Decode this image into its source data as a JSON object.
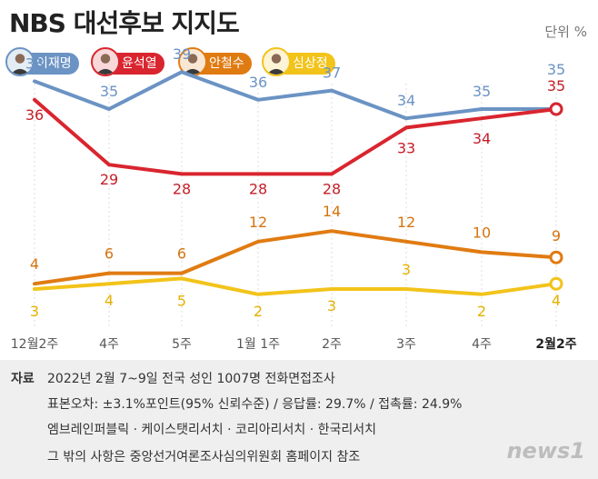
{
  "title": "NBS 대선후보 지지도",
  "unit": "단위 %",
  "candidates": [
    {
      "name": "이재명",
      "color": "#6b93c4"
    },
    {
      "name": "윤석열",
      "color": "#d9252f"
    },
    {
      "name": "안철수",
      "color": "#e07b12"
    },
    {
      "name": "심상정",
      "color": "#f2c31a"
    }
  ],
  "chart_data": {
    "type": "line",
    "categories": [
      "12월2주",
      "4주",
      "5주",
      "1월 1주",
      "2주",
      "3주",
      "4주",
      "2월2주"
    ],
    "series": [
      {
        "name": "이재명",
        "color": "#6b93c4",
        "values": [
          38,
          35,
          39,
          36,
          37,
          34,
          35,
          35
        ]
      },
      {
        "name": "윤석열",
        "color": "#d9252f",
        "values": [
          36,
          29,
          28,
          28,
          28,
          33,
          34,
          35
        ]
      },
      {
        "name": "안철수",
        "color": "#e07b12",
        "values": [
          4,
          6,
          6,
          12,
          14,
          12,
          10,
          9
        ]
      },
      {
        "name": "심상정",
        "color": "#f2c31a",
        "values": [
          3,
          4,
          5,
          2,
          3,
          3,
          2,
          4
        ]
      }
    ],
    "legend": "top-left",
    "grid": "vertical"
  },
  "source": {
    "label": "자료",
    "line1": "2022년 2월 7~9일 전국 성인 1007명 전화면접조사",
    "line2": "표본오차: ±3.1%포인트(95% 신뢰수준) / 응답률: 29.7% / 접촉률: 24.9%",
    "line3": "엠브레인퍼블릭 · 케이스탯리서치 · 코리아리서치 · 한국리서치",
    "line4": "그 밖의 사항은 중앙선거여론조사심의위원회 홈페이지 참조"
  },
  "logo": "news1"
}
